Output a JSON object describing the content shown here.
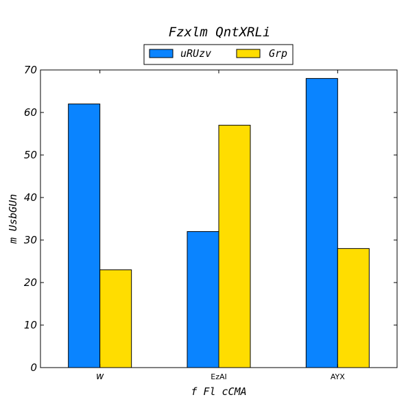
{
  "chart_data": {
    "type": "bar",
    "title": "Fzxlm QntXRLi",
    "xlabel": "f Fl cCMA",
    "ylabel": "m UsbGUn",
    "categories": [
      "w",
      "EzAI",
      "AYX"
    ],
    "series": [
      {
        "name": "uRUzv",
        "values": [
          62,
          32,
          68
        ],
        "color": "#0a84ff"
      },
      {
        "name": "Grp",
        "values": [
          23,
          57,
          28
        ],
        "color": "#ffdd00"
      }
    ],
    "ylim": [
      0,
      70
    ],
    "yticks": [
      0,
      10,
      20,
      30,
      40,
      50,
      60,
      70
    ],
    "grid": false,
    "legend_position": "top-center"
  }
}
